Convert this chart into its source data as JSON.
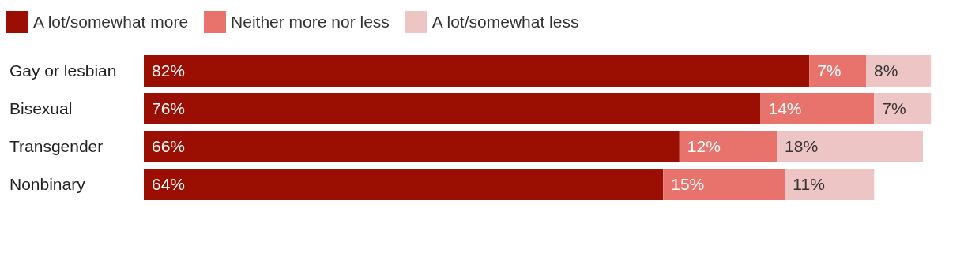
{
  "chart_data": {
    "type": "bar",
    "orientation": "horizontal",
    "stacked": true,
    "categories": [
      "Gay or lesbian",
      "Bisexual",
      "Transgender",
      "Nonbinary"
    ],
    "series": [
      {
        "name": "A lot/somewhat more",
        "color": "#9b0e02",
        "values": [
          82,
          76,
          66,
          64
        ],
        "value_labels": [
          "82%",
          "76%",
          "66%",
          "64%"
        ]
      },
      {
        "name": "Neither more nor less",
        "color": "#e8736c",
        "values": [
          7,
          14,
          12,
          15
        ],
        "value_labels": [
          "7%",
          "14%",
          "12%",
          "15%"
        ]
      },
      {
        "name": "A lot/somewhat less",
        "color": "#ecc5c4",
        "values": [
          8,
          7,
          18,
          11
        ],
        "value_labels": [
          "8%",
          "7%",
          "18%",
          "11%"
        ]
      }
    ],
    "tick_labels": "y",
    "legend": "top left"
  }
}
